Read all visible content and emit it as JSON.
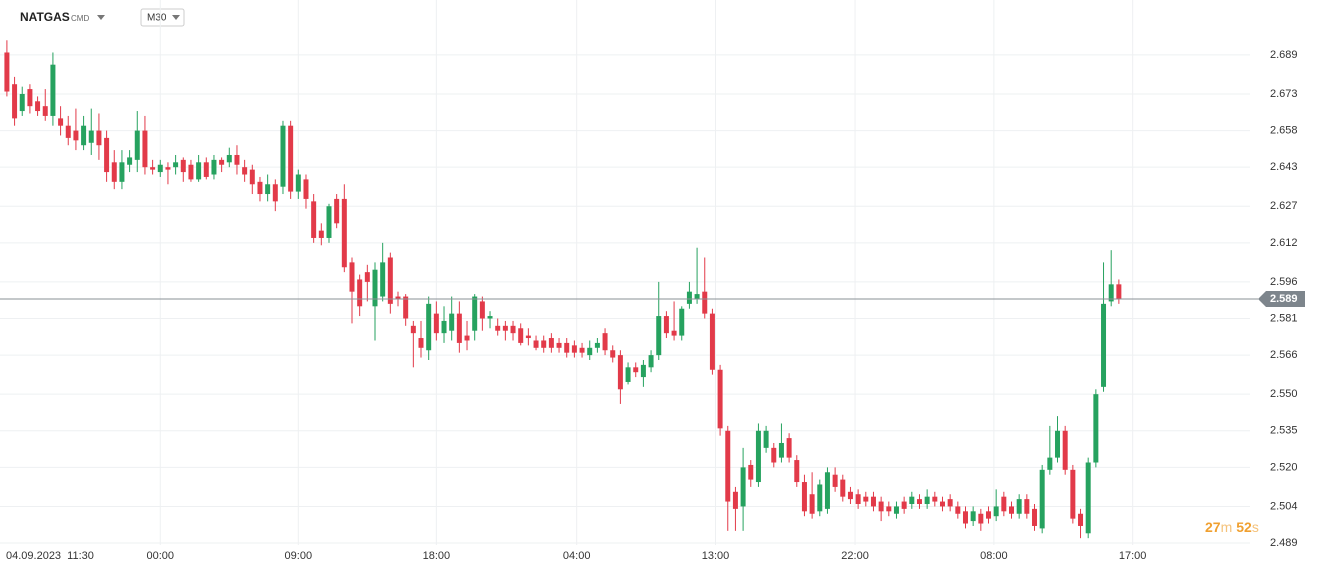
{
  "header": {
    "symbol": "NATGAS",
    "market": "CMD",
    "interval": "M30"
  },
  "countdown": [
    "27",
    "m",
    "52",
    "s"
  ],
  "chart_data": {
    "type": "candlestick",
    "up_color": "#26a25f",
    "down_color": "#e23a49",
    "grid": true,
    "last_price": 2.589,
    "ylim": [
      2.4882,
      2.7115
    ],
    "yticks": [
      2.689,
      2.673,
      2.658,
      2.643,
      2.627,
      2.612,
      2.596,
      2.581,
      2.566,
      {
        "value": 2.55,
        "label": "2.550"
      },
      2.535,
      {
        "value": 2.52,
        "label": "2.520"
      },
      2.504,
      2.489
    ],
    "xlim": [
      -0.9,
      162.1
    ],
    "xticks": [
      {
        "value": 0,
        "label": "04.09.2023  11:30"
      },
      {
        "value": 20,
        "label": "00:00"
      },
      {
        "value": 38,
        "label": "09:00"
      },
      {
        "value": 56,
        "label": "18:00"
      },
      {
        "value": 74.3,
        "label": "04:00"
      },
      {
        "value": 92.4,
        "label": "13:00"
      },
      {
        "value": 110.6,
        "label": "22:00"
      },
      {
        "value": 128.7,
        "label": "08:00"
      },
      {
        "value": 146.8,
        "label": "17:00"
      }
    ],
    "open": [
      2.69,
      2.677,
      2.666,
      2.675,
      2.67,
      2.668,
      2.664,
      2.663,
      2.66,
      2.658,
      2.652,
      2.653,
      2.658,
      2.655,
      2.645,
      2.637,
      2.644,
      2.646,
      2.658,
      2.643,
      2.641,
      2.643,
      2.643,
      2.646,
      2.644,
      2.638,
      2.645,
      2.64,
      2.646,
      2.645,
      2.648,
      2.643,
      2.642,
      2.637,
      2.632,
      2.636,
      2.635,
      2.66,
      2.633,
      2.638,
      2.629,
      2.617,
      2.614,
      2.63,
      2.63,
      2.604,
      2.597,
      2.6,
      2.586,
      2.59,
      2.606,
      2.59,
      2.59,
      2.578,
      2.573,
      2.568,
      2.583,
      2.575,
      2.576,
      2.583,
      2.574,
      2.576,
      2.588,
      2.581,
      2.578,
      2.578,
      2.578,
      2.577,
      2.574,
      2.572,
      2.572,
      2.573,
      2.571,
      2.571,
      2.57,
      2.569,
      2.566,
      2.569,
      2.575,
      2.568,
      2.566,
      2.555,
      2.561,
      2.557,
      2.561,
      2.566,
      2.582,
      2.576,
      2.574,
      2.587,
      2.589,
      2.592,
      2.583,
      2.56,
      2.535,
      2.51,
      2.504,
      2.521,
      2.514,
      2.528,
      2.528,
      2.524,
      2.532,
      2.523,
      2.514,
      2.509,
      2.502,
      2.503,
      2.517,
      2.515,
      2.51,
      2.509,
      2.508,
      2.508,
      2.506,
      2.504,
      2.501,
      2.506,
      2.505,
      2.507,
      2.505,
      2.508,
      2.506,
      2.507,
      2.504,
      2.502,
      2.498,
      2.501,
      2.502,
      2.5,
      2.508,
      2.504,
      2.501,
      2.507,
      2.503,
      2.495,
      2.519,
      2.524,
      2.535,
      2.519,
      2.501,
      2.493,
      2.522,
      2.553,
      2.588,
      2.595
    ],
    "high": [
      2.695,
      2.68,
      2.676,
      2.677,
      2.672,
      2.675,
      2.69,
      2.668,
      2.664,
      2.667,
      2.664,
      2.667,
      2.665,
      2.658,
      2.65,
      2.65,
      2.65,
      2.666,
      2.664,
      2.646,
      2.646,
      2.645,
      2.648,
      2.647,
      2.646,
      2.648,
      2.647,
      2.648,
      2.647,
      2.651,
      2.652,
      2.646,
      2.644,
      2.639,
      2.64,
      2.638,
      2.662,
      2.662,
      2.642,
      2.64,
      2.632,
      2.62,
      2.628,
      2.632,
      2.636,
      2.606,
      2.599,
      2.603,
      2.604,
      2.612,
      2.608,
      2.592,
      2.591,
      2.58,
      2.58,
      2.59,
      2.588,
      2.586,
      2.59,
      2.588,
      2.58,
      2.591,
      2.59,
      2.584,
      2.581,
      2.58,
      2.58,
      2.579,
      2.577,
      2.574,
      2.574,
      2.575,
      2.573,
      2.573,
      2.572,
      2.571,
      2.572,
      2.573,
      2.577,
      2.57,
      2.568,
      2.563,
      2.563,
      2.564,
      2.568,
      2.596,
      2.584,
      2.588,
      2.586,
      2.596,
      2.61,
      2.606,
      2.585,
      2.562,
      2.537,
      2.512,
      2.528,
      2.523,
      2.538,
      2.537,
      2.53,
      2.538,
      2.534,
      2.525,
      2.517,
      2.518,
      2.515,
      2.52,
      2.52,
      2.517,
      2.512,
      2.511,
      2.51,
      2.51,
      2.508,
      2.506,
      2.506,
      2.508,
      2.51,
      2.509,
      2.511,
      2.51,
      2.508,
      2.509,
      2.506,
      2.504,
      2.504,
      2.503,
      2.504,
      2.511,
      2.51,
      2.506,
      2.509,
      2.509,
      2.505,
      2.521,
      2.537,
      2.541,
      2.537,
      2.521,
      2.503,
      2.524,
      2.552,
      2.604,
      2.609,
      2.597
    ],
    "low": [
      2.672,
      2.66,
      2.664,
      2.665,
      2.664,
      2.662,
      2.66,
      2.656,
      2.652,
      2.65,
      2.65,
      2.648,
      2.646,
      2.637,
      2.634,
      2.634,
      2.641,
      2.641,
      2.64,
      2.64,
      2.639,
      2.636,
      2.64,
      2.637,
      2.637,
      2.637,
      2.638,
      2.638,
      2.641,
      2.643,
      2.64,
      2.637,
      2.632,
      2.629,
      2.629,
      2.625,
      2.632,
      2.63,
      2.63,
      2.626,
      2.612,
      2.611,
      2.612,
      2.618,
      2.6,
      2.579,
      2.582,
      2.588,
      2.572,
      2.588,
      2.583,
      2.586,
      2.578,
      2.561,
      2.565,
      2.564,
      2.572,
      2.571,
      2.572,
      2.567,
      2.568,
      2.572,
      2.576,
      2.577,
      2.574,
      2.572,
      2.572,
      2.57,
      2.57,
      2.568,
      2.567,
      2.567,
      2.567,
      2.565,
      2.565,
      2.565,
      2.564,
      2.567,
      2.566,
      2.563,
      2.546,
      2.554,
      2.557,
      2.553,
      2.559,
      2.564,
      2.573,
      2.572,
      2.572,
      2.585,
      2.587,
      2.581,
      2.558,
      2.533,
      2.494,
      2.494,
      2.494,
      2.512,
      2.512,
      2.526,
      2.52,
      2.522,
      2.522,
      2.512,
      2.5,
      2.499,
      2.5,
      2.501,
      2.51,
      2.506,
      2.505,
      2.503,
      2.504,
      2.502,
      2.498,
      2.5,
      2.499,
      2.501,
      2.503,
      2.503,
      2.503,
      2.504,
      2.502,
      2.502,
      2.499,
      2.495,
      2.496,
      2.494,
      2.497,
      2.498,
      2.5,
      2.499,
      2.499,
      2.499,
      2.494,
      2.493,
      2.517,
      2.522,
      2.517,
      2.497,
      2.491,
      2.491,
      2.52,
      2.551,
      2.586,
      2.587
    ],
    "close": [
      2.674,
      2.663,
      2.673,
      2.668,
      2.666,
      2.664,
      2.685,
      2.66,
      2.655,
      2.654,
      2.66,
      2.658,
      2.652,
      2.641,
      2.637,
      2.645,
      2.647,
      2.658,
      2.643,
      2.642,
      2.644,
      2.642,
      2.645,
      2.641,
      2.638,
      2.645,
      2.639,
      2.646,
      2.644,
      2.648,
      2.644,
      2.64,
      2.636,
      2.632,
      2.636,
      2.629,
      2.66,
      2.633,
      2.64,
      2.63,
      2.614,
      2.614,
      2.627,
      2.62,
      2.602,
      2.592,
      2.586,
      2.596,
      2.601,
      2.604,
      2.587,
      2.589,
      2.581,
      2.575,
      2.569,
      2.587,
      2.575,
      2.58,
      2.583,
      2.571,
      2.572,
      2.59,
      2.581,
      2.582,
      2.576,
      2.576,
      2.575,
      2.571,
      2.573,
      2.569,
      2.569,
      2.569,
      2.569,
      2.567,
      2.567,
      2.567,
      2.569,
      2.571,
      2.568,
      2.565,
      2.552,
      2.561,
      2.559,
      2.562,
      2.566,
      2.582,
      2.575,
      2.574,
      2.585,
      2.592,
      2.591,
      2.583,
      2.56,
      2.536,
      2.506,
      2.503,
      2.52,
      2.515,
      2.535,
      2.535,
      2.522,
      2.53,
      2.524,
      2.514,
      2.502,
      2.501,
      2.513,
      2.518,
      2.512,
      2.508,
      2.507,
      2.505,
      2.506,
      2.504,
      2.502,
      2.502,
      2.504,
      2.503,
      2.508,
      2.505,
      2.508,
      2.506,
      2.504,
      2.504,
      2.501,
      2.497,
      2.502,
      2.497,
      2.499,
      2.504,
      2.502,
      2.501,
      2.507,
      2.501,
      2.496,
      2.519,
      2.524,
      2.535,
      2.519,
      2.499,
      2.496,
      2.522,
      2.55,
      2.587,
      2.595,
      2.589
    ]
  }
}
